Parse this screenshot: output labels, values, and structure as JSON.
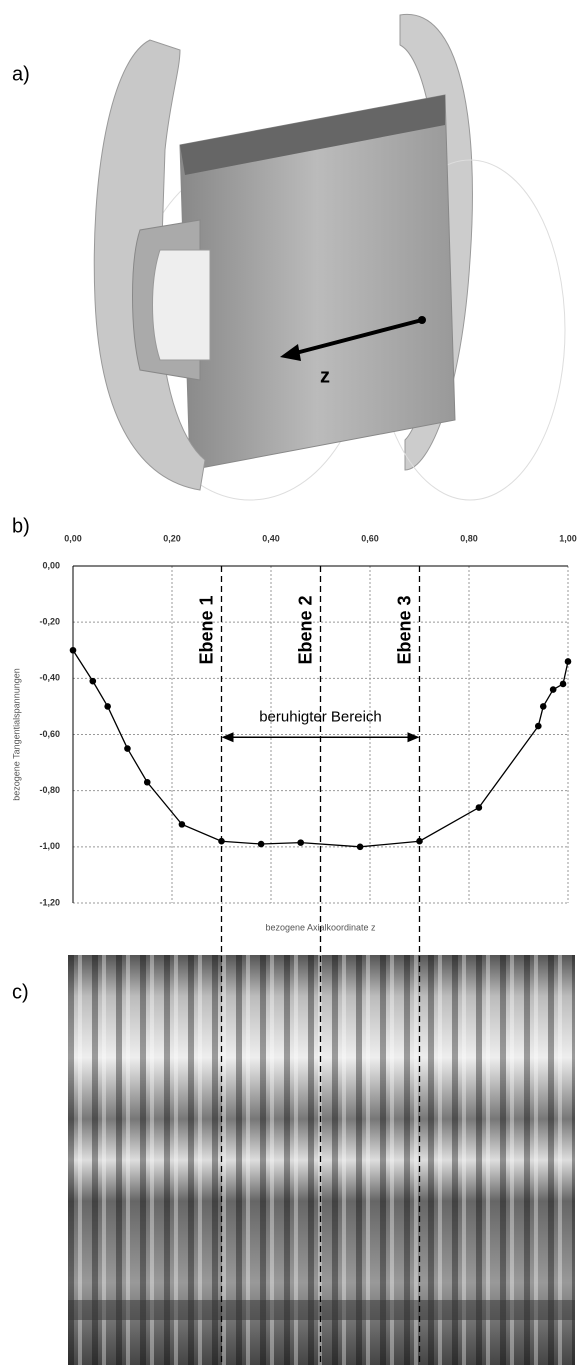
{
  "panel_labels": [
    "a)",
    "b)",
    "c)"
  ],
  "figure_a": {
    "axis_label": "z"
  },
  "chart_data": {
    "type": "line",
    "x_label": "bezogene Axialkoordinate z",
    "y_label": "bezogene Tangentialspannungen",
    "x": [
      0.0,
      0.04,
      0.07,
      0.11,
      0.15,
      0.22,
      0.3,
      0.38,
      0.46,
      0.58,
      0.7,
      0.82,
      0.94,
      0.95,
      0.97,
      0.99,
      1.0
    ],
    "series": [
      {
        "color": "#000000",
        "values": [
          -0.3,
          -0.41,
          -0.5,
          -0.65,
          -0.77,
          -0.92,
          -0.98,
          -0.99,
          -0.985,
          -1.0,
          -0.98,
          -0.86,
          -0.57,
          -0.5,
          -0.44,
          -0.42,
          -0.34
        ]
      }
    ],
    "xlim": [
      0,
      1
    ],
    "ylim": [
      -1.2,
      0
    ],
    "xticks": [
      {
        "value": 0,
        "label": "0,00"
      },
      {
        "value": 0.2,
        "label": "0,20"
      },
      {
        "value": 0.4,
        "label": "0,40"
      },
      {
        "value": 0.6,
        "label": "0,60"
      },
      {
        "value": 0.8,
        "label": "0,80"
      },
      {
        "value": 1,
        "label": "1,00"
      }
    ],
    "yticks": [
      {
        "value": 0,
        "label": "0,00"
      },
      {
        "value": -0.2,
        "label": "-0,20"
      },
      {
        "value": -0.4,
        "label": "-0,40"
      },
      {
        "value": -0.6,
        "label": "-0,60"
      },
      {
        "value": -0.8,
        "label": "-0,80"
      },
      {
        "value": -1.0,
        "label": "-1,00"
      },
      {
        "value": -1.2,
        "label": "-1,20"
      }
    ],
    "grid": true,
    "planes": [
      {
        "label": "Ebene 1",
        "x": 0.3
      },
      {
        "label": "Ebene 2",
        "x": 0.5
      },
      {
        "label": "Ebene 3",
        "x": 0.7
      }
    ],
    "annotation": {
      "text": "beruhigter Bereich",
      "x_from": 0.3,
      "x_to": 0.7,
      "y": -0.61
    }
  }
}
